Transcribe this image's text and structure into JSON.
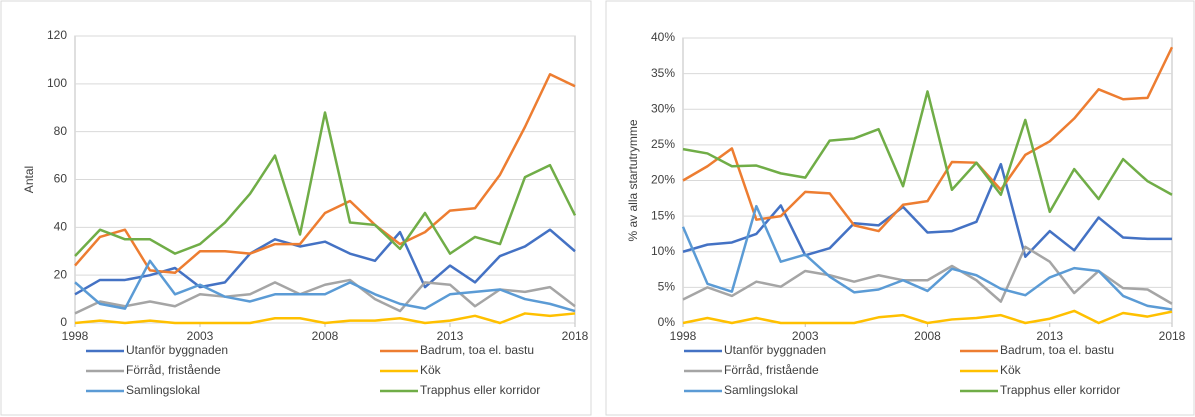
{
  "chart_data": [
    {
      "type": "line",
      "ylabel": "Antal",
      "x": [
        1998,
        1999,
        2000,
        2001,
        2002,
        2003,
        2004,
        2005,
        2006,
        2007,
        2008,
        2009,
        2010,
        2011,
        2012,
        2013,
        2014,
        2015,
        2016,
        2017,
        2018
      ],
      "xlim": [
        1998,
        2018
      ],
      "xticks": [
        1998,
        2003,
        2008,
        2013,
        2018
      ],
      "ylim": [
        0,
        120
      ],
      "yticks": [
        0,
        20,
        40,
        60,
        80,
        100,
        120
      ],
      "grid": true,
      "series": [
        {
          "name": "Utanför byggnaden",
          "color": "#4472c4",
          "values": [
            12,
            18,
            18,
            20,
            23,
            15,
            17,
            29,
            35,
            32,
            34,
            29,
            26,
            38,
            15,
            24,
            17,
            28,
            32,
            39,
            30
          ]
        },
        {
          "name": "Badrum, toa el. bastu",
          "color": "#ed7d31",
          "values": [
            24,
            36,
            39,
            22,
            21,
            30,
            30,
            29,
            33,
            33,
            46,
            51,
            41,
            33,
            38,
            47,
            48,
            62,
            82,
            104,
            99
          ]
        },
        {
          "name": "Förråd, fristående",
          "color": "#a5a5a5",
          "values": [
            4,
            9,
            7,
            9,
            7,
            12,
            11,
            12,
            17,
            12,
            16,
            18,
            10,
            5,
            17,
            16,
            7,
            14,
            13,
            15,
            7
          ]
        },
        {
          "name": "Kök",
          "color": "#ffc000",
          "values": [
            0,
            1,
            0,
            1,
            0,
            0,
            0,
            0,
            2,
            2,
            0,
            1,
            1,
            2,
            0,
            1,
            3,
            0,
            4,
            3,
            4
          ]
        },
        {
          "name": "Samlingslokal",
          "color": "#5b9bd5",
          "values": [
            17,
            8,
            6,
            26,
            12,
            16,
            11,
            9,
            12,
            12,
            12,
            17,
            12,
            8,
            6,
            12,
            13,
            14,
            10,
            8,
            5
          ]
        },
        {
          "name": "Trapphus eller korridor",
          "color": "#70ad47",
          "values": [
            28,
            39,
            35,
            35,
            29,
            33,
            42,
            54,
            70,
            37,
            88,
            42,
            41,
            31,
            46,
            29,
            36,
            33,
            61,
            66,
            45
          ]
        }
      ]
    },
    {
      "type": "line",
      "ylabel": "% av alla startutrymme",
      "x": [
        1998,
        1999,
        2000,
        2001,
        2002,
        2003,
        2004,
        2005,
        2006,
        2007,
        2008,
        2009,
        2010,
        2011,
        2012,
        2013,
        2014,
        2015,
        2016,
        2017,
        2018
      ],
      "xlim": [
        1998,
        2018
      ],
      "xticks": [
        1998,
        2003,
        2008,
        2013,
        2018
      ],
      "ylim": [
        0,
        40
      ],
      "yticks": [
        {
          "value": 0,
          "label": "0%"
        },
        {
          "value": 5,
          "label": "5%"
        },
        {
          "value": 10,
          "label": "10%"
        },
        {
          "value": 15,
          "label": "15%"
        },
        {
          "value": 20,
          "label": "20%"
        },
        {
          "value": 25,
          "label": "25%"
        },
        {
          "value": 30,
          "label": "30%"
        },
        {
          "value": 35,
          "label": "35%"
        },
        {
          "value": 40,
          "label": "40%"
        }
      ],
      "grid": true,
      "series": [
        {
          "name": "Utanför byggnaden",
          "color": "#4472c4",
          "values": [
            10,
            11,
            11.3,
            12.5,
            16.5,
            9.5,
            10.5,
            14,
            13.7,
            16.3,
            12.7,
            12.9,
            14.2,
            22.3,
            9.3,
            12.9,
            10.2,
            14.8,
            12,
            11.8,
            11.8
          ]
        },
        {
          "name": "Badrum, toa el. bastu",
          "color": "#ed7d31",
          "values": [
            20,
            22,
            24.5,
            14.5,
            15,
            18.4,
            18.2,
            13.7,
            12.9,
            16.6,
            17.1,
            22.6,
            22.5,
            18.7,
            23.6,
            25.5,
            28.7,
            32.8,
            31.4,
            31.6,
            38.7
          ]
        },
        {
          "name": "Förråd, fristående",
          "color": "#a5a5a5",
          "values": [
            3.3,
            5,
            3.8,
            5.8,
            5.1,
            7.3,
            6.7,
            5.8,
            6.7,
            6,
            6,
            8,
            6,
            3,
            10.7,
            8.6,
            4.2,
            7.3,
            4.9,
            4.7,
            2.7
          ]
        },
        {
          "name": "Kök",
          "color": "#ffc000",
          "values": [
            0,
            0.7,
            0,
            0.7,
            0,
            0,
            0,
            0,
            0.8,
            1.1,
            0,
            0.5,
            0.7,
            1.1,
            0,
            0.6,
            1.7,
            0,
            1.4,
            0.9,
            1.6
          ]
        },
        {
          "name": "Samlingslokal",
          "color": "#5b9bd5",
          "values": [
            13.5,
            5.5,
            4.4,
            16.4,
            8.6,
            9.6,
            6.5,
            4.3,
            4.7,
            6,
            4.5,
            7.6,
            6.7,
            4.8,
            3.9,
            6.4,
            7.7,
            7.3,
            3.8,
            2.4,
            1.9
          ]
        },
        {
          "name": "Trapphus eller korridor",
          "color": "#70ad47",
          "values": [
            24.4,
            23.8,
            22,
            22.1,
            21,
            20.4,
            25.6,
            25.9,
            27.2,
            19.2,
            32.5,
            18.7,
            22.5,
            18,
            28.5,
            15.6,
            21.6,
            17.4,
            23,
            19.9,
            18
          ]
        }
      ]
    }
  ]
}
